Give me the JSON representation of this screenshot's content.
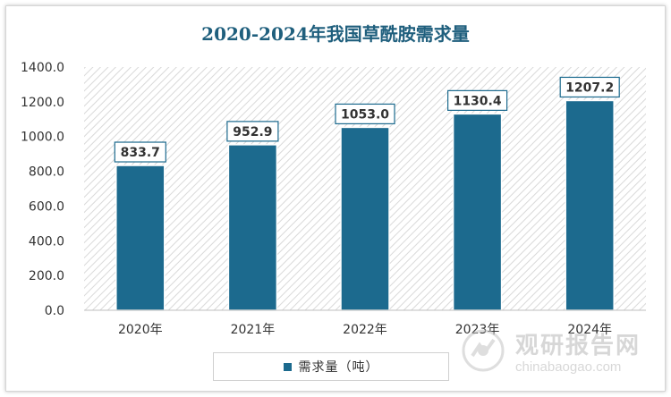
{
  "chart_data": {
    "type": "bar",
    "title": "2020-2024年我国草酰胺需求量",
    "categories": [
      "2020年",
      "2021年",
      "2022年",
      "2023年",
      "2024年"
    ],
    "series": [
      {
        "name": "需求量（吨）",
        "values": [
          833.7,
          952.9,
          1053.0,
          1130.4,
          1207.2
        ]
      }
    ],
    "value_labels": [
      "833.7",
      "952.9",
      "1053.0",
      "1130.4",
      "1207.2"
    ],
    "yticks": [
      "0.0",
      "200.0",
      "400.0",
      "600.0",
      "800.0",
      "1000.0",
      "1200.0",
      "1400.0"
    ],
    "ylim": [
      0,
      1400
    ],
    "legend_position": "bottom",
    "bar_color": "#1c6a8e",
    "grid": false
  },
  "watermark": {
    "cn": "观研报告网",
    "en": "chinabaogao.com"
  }
}
